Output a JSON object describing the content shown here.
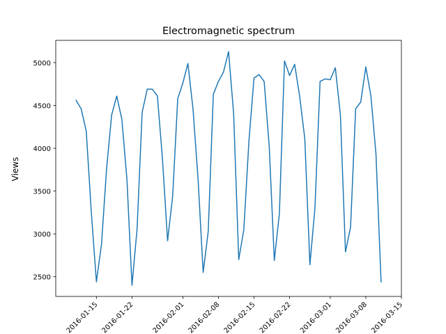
{
  "chart_data": {
    "type": "line",
    "title": "Electromagnetic spectrum",
    "xlabel": "",
    "ylabel": "Views",
    "x_tick_labels": [
      "2016-01-15",
      "2016-01-22",
      "2016-02-01",
      "2016-02-08",
      "2016-02-15",
      "2016-02-22",
      "2016-03-01",
      "2016-03-08",
      "2016-03-15"
    ],
    "y_tick_labels": [
      "2500",
      "3000",
      "3500",
      "4000",
      "4500",
      "5000"
    ],
    "xlim": [
      "2016-01-07",
      "2016-03-15"
    ],
    "ylim": [
      2270,
      5260
    ],
    "grid": false,
    "series": [
      {
        "name": "",
        "color": "#1f77b4",
        "x": [
          "2016-01-11",
          "2016-01-12",
          "2016-01-13",
          "2016-01-14",
          "2016-01-15",
          "2016-01-16",
          "2016-01-17",
          "2016-01-18",
          "2016-01-19",
          "2016-01-20",
          "2016-01-21",
          "2016-01-22",
          "2016-01-23",
          "2016-01-24",
          "2016-01-25",
          "2016-01-26",
          "2016-01-27",
          "2016-01-28",
          "2016-01-29",
          "2016-01-30",
          "2016-01-31",
          "2016-02-01",
          "2016-02-02",
          "2016-02-03",
          "2016-02-04",
          "2016-02-05",
          "2016-02-06",
          "2016-02-07",
          "2016-02-08",
          "2016-02-09",
          "2016-02-10",
          "2016-02-11",
          "2016-02-12",
          "2016-02-13",
          "2016-02-14",
          "2016-02-15",
          "2016-02-16",
          "2016-02-17",
          "2016-02-18",
          "2016-02-19",
          "2016-02-20",
          "2016-02-21",
          "2016-02-22",
          "2016-02-23",
          "2016-02-24",
          "2016-02-25",
          "2016-02-26",
          "2016-02-27",
          "2016-02-28",
          "2016-02-29",
          "2016-03-01",
          "2016-03-02",
          "2016-03-03",
          "2016-03-04",
          "2016-03-05",
          "2016-03-06",
          "2016-03-07",
          "2016-03-08",
          "2016-03-09",
          "2016-03-10",
          "2016-03-11",
          "2016-03-12"
        ],
        "values": [
          4560,
          4460,
          4200,
          3250,
          2440,
          2880,
          3760,
          4390,
          4610,
          4340,
          3640,
          2400,
          3060,
          4420,
          4690,
          4690,
          4610,
          3870,
          2920,
          3440,
          4580,
          4760,
          4990,
          4460,
          3640,
          2550,
          3030,
          4630,
          4780,
          4890,
          5130,
          4400,
          2700,
          3050,
          4080,
          4820,
          4860,
          4780,
          4020,
          2690,
          3240,
          5020,
          4850,
          4980,
          4600,
          4110,
          2640,
          3310,
          4780,
          4810,
          4800,
          4940,
          4390,
          2790,
          3080,
          4460,
          4540,
          4950,
          4610,
          3930,
          2440,
          null
        ]
      }
    ]
  }
}
